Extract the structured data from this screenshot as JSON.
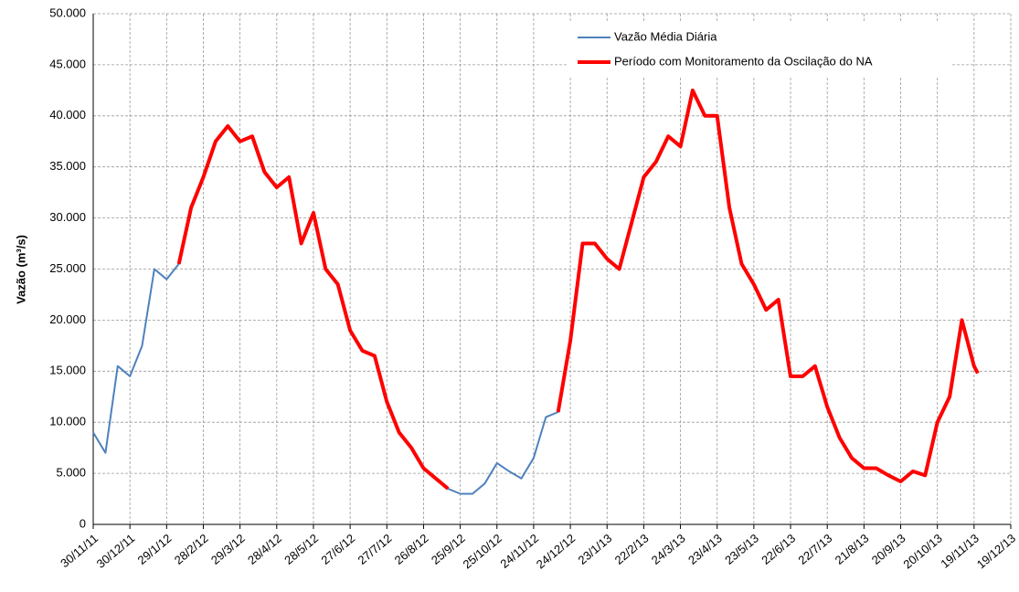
{
  "chart_data": {
    "type": "line",
    "y_label": "Vazão (m³/s)",
    "x": [
      "30/11/11",
      "10/12/11",
      "20/12/11",
      "30/12/11",
      "9/1/12",
      "19/1/12",
      "29/1/12",
      "8/2/12",
      "18/2/12",
      "28/2/12",
      "9/3/12",
      "19/3/12",
      "29/3/12",
      "8/4/12",
      "18/4/12",
      "28/4/12",
      "8/5/12",
      "18/5/12",
      "28/5/12",
      "7/6/12",
      "17/6/12",
      "27/6/12",
      "7/7/12",
      "17/7/12",
      "27/7/12",
      "6/8/12",
      "16/8/12",
      "26/8/12",
      "5/9/12",
      "15/9/12",
      "25/9/12",
      "5/10/12",
      "15/10/12",
      "25/10/12",
      "4/11/12",
      "14/11/12",
      "24/11/12",
      "4/12/12",
      "14/12/12",
      "24/12/12",
      "3/1/13",
      "13/1/13",
      "23/1/13",
      "2/2/13",
      "12/2/13",
      "22/2/13",
      "4/3/13",
      "14/3/13",
      "24/3/13",
      "3/4/13",
      "13/4/13",
      "23/4/13",
      "3/5/13",
      "13/5/13",
      "23/5/13",
      "2/6/13",
      "12/6/13",
      "22/6/13",
      "2/7/13",
      "12/7/13",
      "22/7/13",
      "1/8/13",
      "11/8/13",
      "21/8/13",
      "31/8/13",
      "10/9/13",
      "20/9/13",
      "30/9/13",
      "10/10/13",
      "20/10/13",
      "30/10/13",
      "9/11/13",
      "19/11/13",
      "22/11/13"
    ],
    "series": [
      {
        "name": "Vazão Média Diária",
        "color": "#4f81bd",
        "width": 2,
        "values": [
          9000,
          7000,
          15500,
          14500,
          17500,
          25000,
          24000,
          25500,
          31000,
          34000,
          37500,
          39000,
          37500,
          38000,
          34500,
          33000,
          34000,
          27500,
          30500,
          25000,
          23500,
          19000,
          17000,
          16500,
          12000,
          9000,
          7500,
          5500,
          4500,
          3500,
          3000,
          3000,
          4000,
          6000,
          5200,
          4500,
          6500,
          10500,
          11000,
          18000,
          27500,
          27500,
          26000,
          25000,
          29500,
          34000,
          35500,
          38000,
          37000,
          42500,
          40000,
          40000,
          31000,
          25500,
          23500,
          21000,
          22000,
          14500,
          14500,
          15500,
          11500,
          8500,
          6500,
          5500,
          5500,
          4800,
          4200,
          5200,
          4800,
          10000,
          12500,
          20000,
          15500,
          14800
        ]
      },
      {
        "name": "Período com Monitoramento da Oscilação do NA",
        "color": "#ff0000",
        "width": 4,
        "values": [
          null,
          null,
          null,
          null,
          null,
          null,
          null,
          25500,
          31000,
          34000,
          37500,
          39000,
          37500,
          38000,
          34500,
          33000,
          34000,
          27500,
          30500,
          25000,
          23500,
          19000,
          17000,
          16500,
          12000,
          9000,
          7500,
          5500,
          4500,
          3500,
          null,
          null,
          null,
          null,
          null,
          null,
          null,
          null,
          11000,
          18000,
          27500,
          27500,
          26000,
          25000,
          29500,
          34000,
          35500,
          38000,
          37000,
          42500,
          40000,
          40000,
          31000,
          25500,
          23500,
          21000,
          22000,
          14500,
          14500,
          15500,
          11500,
          8500,
          6500,
          5500,
          5500,
          4800,
          4200,
          5200,
          4800,
          10000,
          12500,
          20000,
          15500,
          14800
        ]
      }
    ],
    "xlim": [
      "30/11/11",
      "19/12/13"
    ],
    "xticks": [
      "30/11/11",
      "30/12/11",
      "29/1/12",
      "28/2/12",
      "29/3/12",
      "28/4/12",
      "28/5/12",
      "27/6/12",
      "27/7/12",
      "26/8/12",
      "25/9/12",
      "25/10/12",
      "24/11/12",
      "24/12/12",
      "23/1/13",
      "22/2/13",
      "24/3/13",
      "23/4/13",
      "23/5/13",
      "22/6/13",
      "22/7/13",
      "21/8/13",
      "20/9/13",
      "20/10/13",
      "19/11/13",
      "19/12/13"
    ],
    "ylim": [
      0,
      50000
    ],
    "yticks": [
      0,
      {
        "value": 5000,
        "label": "5.000"
      },
      {
        "value": 10000,
        "label": "10.000"
      },
      {
        "value": 15000,
        "label": "15.000"
      },
      {
        "value": 20000,
        "label": "20.000"
      },
      {
        "value": 25000,
        "label": "25.000"
      },
      {
        "value": 30000,
        "label": "30.000"
      },
      {
        "value": 35000,
        "label": "35.000"
      },
      {
        "value": 40000,
        "label": "40.000"
      },
      {
        "value": 45000,
        "label": "45.000"
      },
      {
        "value": 50000,
        "label": "50.000"
      }
    ],
    "grid": true,
    "legend": "top-right"
  }
}
